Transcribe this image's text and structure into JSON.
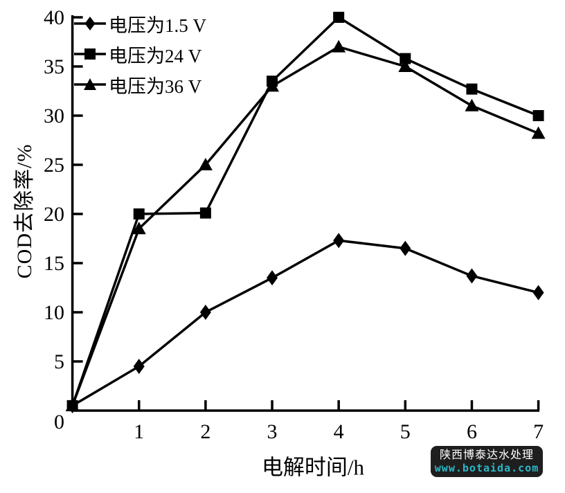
{
  "chart_data": {
    "type": "line",
    "title": "",
    "xlabel": "电解时间/h",
    "ylabel": "COD去除率/%",
    "x": [
      0,
      1,
      2,
      3,
      4,
      5,
      6,
      7
    ],
    "x_ticks": [
      1,
      2,
      3,
      4,
      5,
      6,
      7
    ],
    "y_ticks": [
      0,
      5,
      10,
      15,
      20,
      25,
      30,
      35,
      40
    ],
    "xlim": [
      0,
      7
    ],
    "ylim": [
      0,
      40
    ],
    "grid": false,
    "legend_position": "top-left",
    "line_color": "#000000",
    "series": [
      {
        "name": "电压为1.5 V",
        "marker": "diamond",
        "values": [
          0.5,
          4.5,
          10,
          13.5,
          17.3,
          16.5,
          13.7,
          12
        ]
      },
      {
        "name": "电压为24 V",
        "marker": "square",
        "values": [
          0.5,
          20,
          20.1,
          33.5,
          40,
          35.8,
          32.7,
          30
        ]
      },
      {
        "name": "电压为36 V",
        "marker": "triangle",
        "values": [
          0.5,
          18.5,
          25,
          33,
          37,
          35,
          31,
          28.2
        ]
      }
    ]
  },
  "watermark": {
    "company": "陕西博泰达水处理",
    "url": "www.botaida.com",
    "bg_color": "#1e1e1e",
    "company_color": "#ffffff",
    "url_color": "#2bb8c8"
  }
}
